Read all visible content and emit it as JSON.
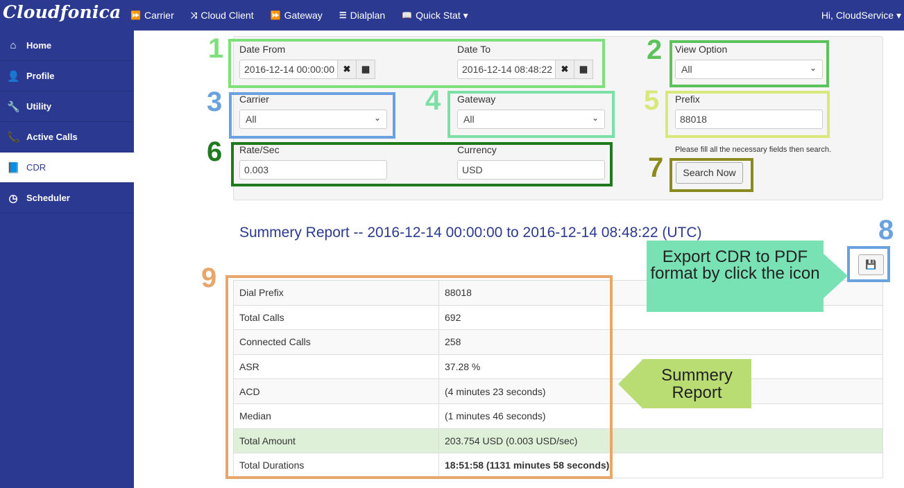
{
  "brand": "Cloudfonica",
  "nav": [
    {
      "icon": "⏩",
      "label": "Carrier"
    },
    {
      "icon": "⤨",
      "label": "Cloud Client"
    },
    {
      "icon": "⏩",
      "label": "Gateway"
    },
    {
      "icon": "☰",
      "label": "Dialplan"
    },
    {
      "icon": "📖",
      "label": "Quick Stat ▾"
    }
  ],
  "user": "Hi, CloudService ▾",
  "sidebar": [
    {
      "icon": "⌂",
      "label": "Home"
    },
    {
      "icon": "👤",
      "label": "Profile"
    },
    {
      "icon": "🔧",
      "label": "Utility"
    },
    {
      "icon": "📞",
      "label": "Active Calls"
    },
    {
      "icon": "📘",
      "label": "CDR"
    },
    {
      "icon": "◷",
      "label": "Scheduler"
    }
  ],
  "form": {
    "date_from_label": "Date From",
    "date_from": "2016-12-14 00:00:00",
    "date_to_label": "Date To",
    "date_to": "2016-12-14 08:48:22",
    "clear_icon": "✖",
    "calendar_icon": "▦",
    "view_option_label": "View Option",
    "view_option": "All",
    "carrier_label": "Carrier",
    "carrier": "All",
    "gateway_label": "Gateway",
    "gateway": "All",
    "prefix_label": "Prefix",
    "prefix": "88018",
    "rate_label": "Rate/Sec",
    "rate": "0.003",
    "currency_label": "Currency",
    "currency": "USD",
    "hint": "Please fill all the necessary fields then search.",
    "search_button": "Search Now",
    "chevron": "⌄"
  },
  "report": {
    "title": "Summery Report -- 2016-12-14 00:00:00 to 2016-12-14 08:48:22 (UTC)",
    "export_icon": "💾",
    "rows": [
      {
        "key": "Dial Prefix",
        "value": "88018"
      },
      {
        "key": "Total Calls",
        "value": "692"
      },
      {
        "key": "Connected Calls",
        "value": "258"
      },
      {
        "key": "ASR",
        "value": "37.28 %"
      },
      {
        "key": "ACD",
        "value": "(4 minutes 23 seconds)"
      },
      {
        "key": "Median",
        "value": "(1 minutes 46 seconds)"
      },
      {
        "key": "Total Amount",
        "value": "203.754 USD (0.003 USD/sec)"
      },
      {
        "key": "Total Durations",
        "value": "18:51:58 (1131 minutes 58 seconds)"
      }
    ]
  },
  "annotations": {
    "numbers": [
      "1",
      "2",
      "3",
      "4",
      "5",
      "6",
      "7",
      "8",
      "9"
    ],
    "export_callout": "Export CDR to PDF format by click the icon",
    "summary_callout": "Summery Report"
  },
  "colors": {
    "nav_bg": "#2b3990",
    "box1": "#7ee07a",
    "box2": "#5cc25c",
    "box3": "#6aa1df",
    "box4": "#7ae0a6",
    "box5": "#d9e87a",
    "box6": "#1f7a1f",
    "box7": "#8a8a1f",
    "box8": "#6aa1df",
    "box9": "#e8a66a"
  }
}
